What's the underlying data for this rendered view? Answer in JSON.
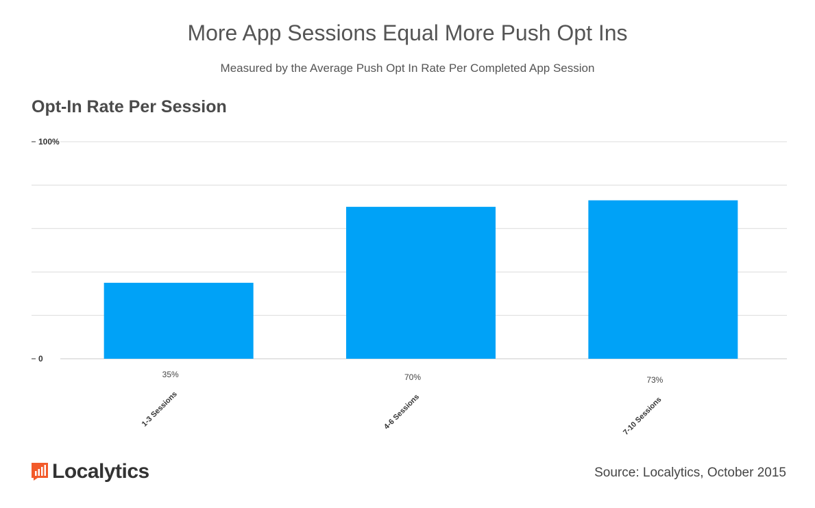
{
  "title": "More App Sessions Equal More Push Opt Ins",
  "subtitle": "Measured by the Average Push Opt In Rate Per Completed App Session",
  "chart_heading": "Opt-In Rate Per Session",
  "source": "Source: Localytics, October 2015",
  "logo": {
    "text": "Localytics",
    "icon": "bar-chart-logo-icon",
    "color": "#f25a2a"
  },
  "chart_data": {
    "type": "bar",
    "categories": [
      "1-3 Sessions",
      "4-6 Sessions",
      "7-10 Sessions"
    ],
    "values": [
      35,
      70,
      73
    ],
    "value_labels": [
      "35%",
      "70%",
      "73%"
    ],
    "ylim": [
      0,
      100
    ],
    "ytick_labels": [
      "0",
      "100%"
    ],
    "gridlines": [
      0,
      20,
      40,
      60,
      80,
      100
    ],
    "grid": true,
    "bar_color": "#00a2f7"
  }
}
